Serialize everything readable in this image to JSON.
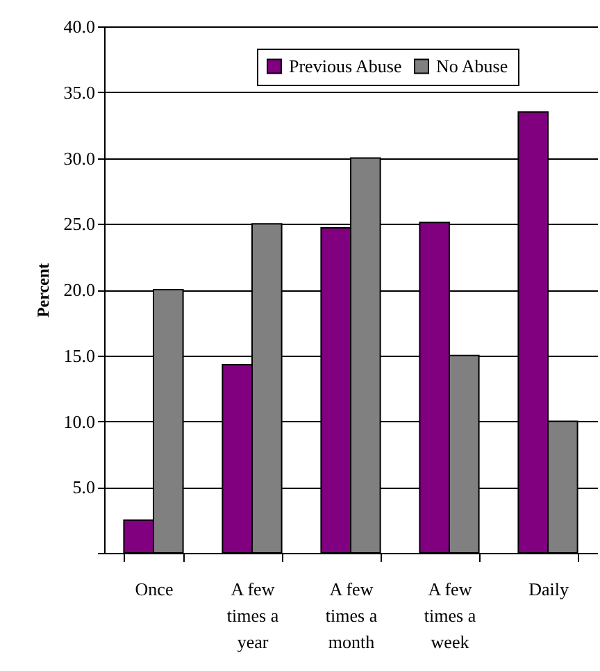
{
  "chart_data": {
    "type": "bar",
    "ylabel": "Percent",
    "categories": [
      "Once",
      "A few times a year",
      "A few times a month",
      "A few times a week",
      "Daily"
    ],
    "series": [
      {
        "name": "Previous Abuse",
        "color": "#800080",
        "values": [
          2.5,
          14.3,
          24.7,
          25.1,
          33.5
        ]
      },
      {
        "name": "No Abuse",
        "color": "#808080",
        "values": [
          20,
          25,
          30,
          15,
          10
        ]
      }
    ],
    "ylim": [
      0,
      40
    ],
    "yticks": [
      {
        "value": 0,
        "label": null
      },
      {
        "value": 5,
        "label": "5.0"
      },
      {
        "value": 10,
        "label": "10.0"
      },
      {
        "value": 15,
        "label": "15.0"
      },
      {
        "value": 20,
        "label": "20.0"
      },
      {
        "value": 25,
        "label": "25.0"
      },
      {
        "value": 30,
        "label": "30.0"
      },
      {
        "value": 35,
        "label": "35.0"
      },
      {
        "value": 40,
        "label": "40.0"
      }
    ],
    "grid": "y",
    "legend": "top"
  }
}
